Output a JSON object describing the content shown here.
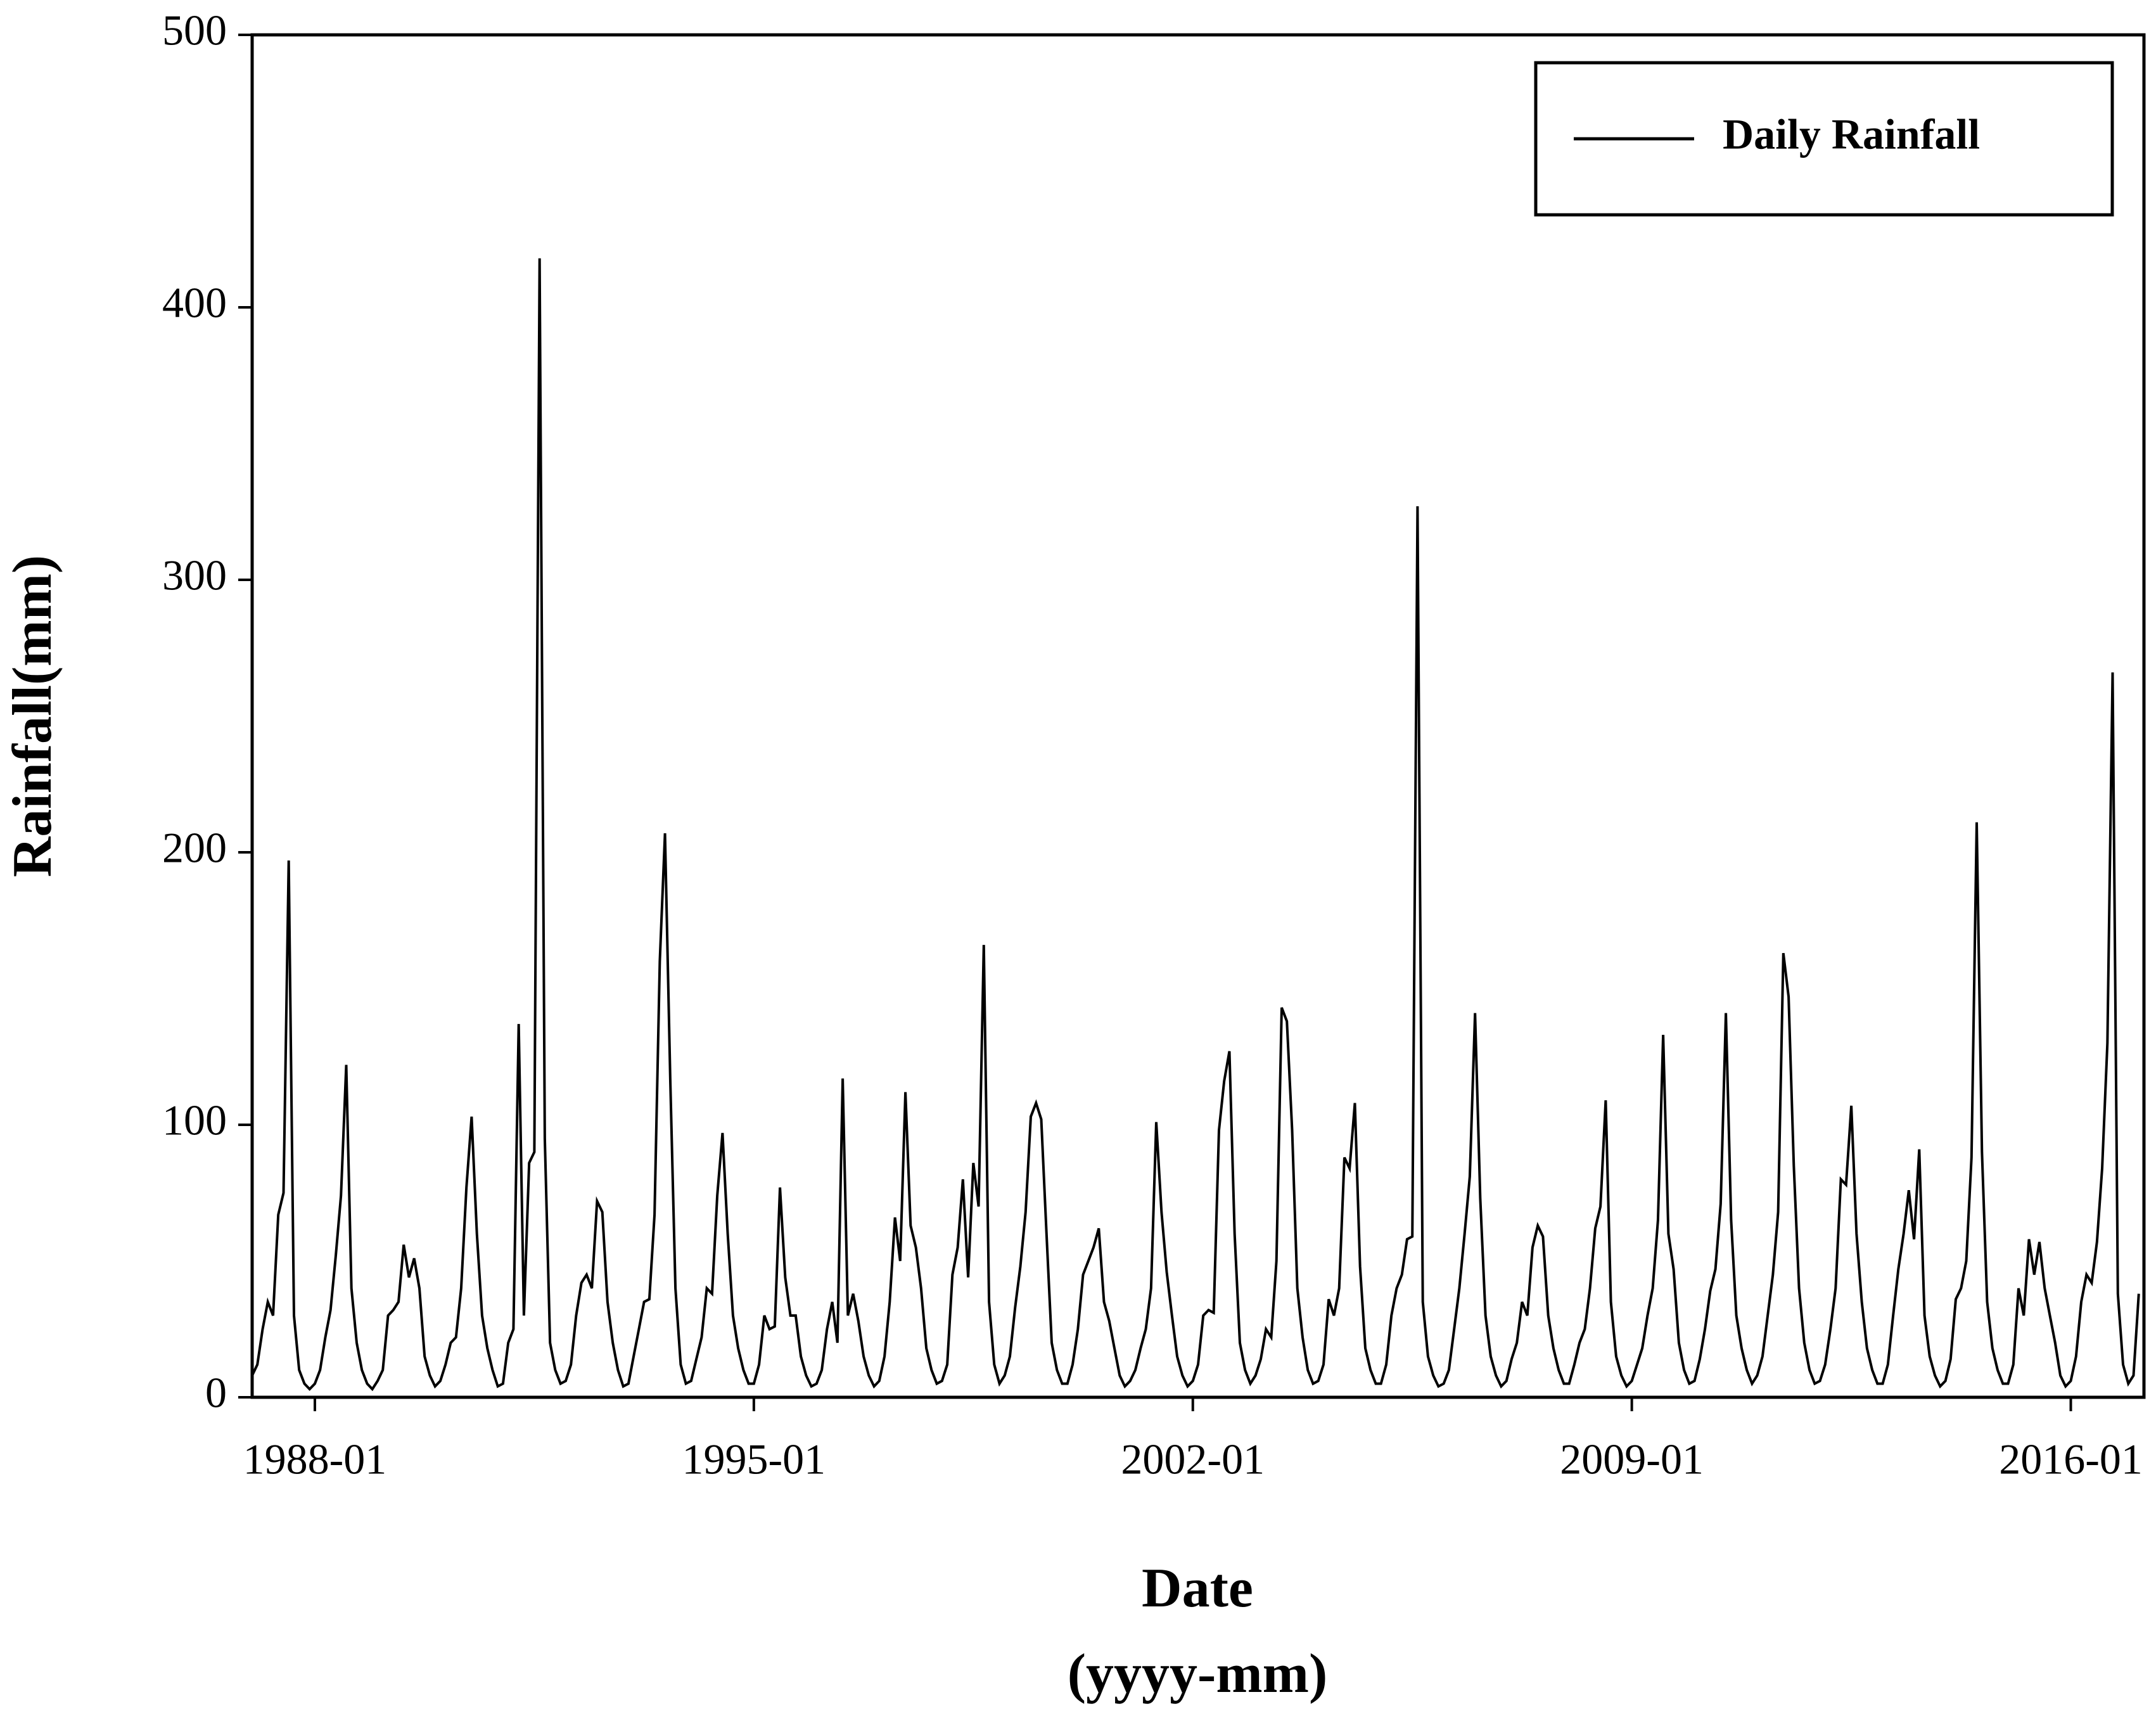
{
  "chart_data": {
    "type": "line",
    "ylabel": "Rainfall(mm)",
    "xlabel": "Date",
    "xlabel_unit": "(yyyy-mm)",
    "ylim": [
      0,
      500
    ],
    "yticks": [
      0,
      100,
      200,
      300,
      400,
      500
    ],
    "xlim": [
      "1987-01",
      "2017-03"
    ],
    "xticks": [
      "1988-01",
      "1995-01",
      "2002-01",
      "2009-01",
      "2016-01"
    ],
    "legend": "top-right",
    "x": [
      "1987-01",
      "1987-02",
      "1987-03",
      "1987-04",
      "1987-05",
      "1987-06",
      "1987-07",
      "1987-08",
      "1987-09",
      "1987-10",
      "1987-11",
      "1987-12",
      "1988-01",
      "1988-02",
      "1988-03",
      "1988-04",
      "1988-05",
      "1988-06",
      "1988-07",
      "1988-08",
      "1988-09",
      "1988-10",
      "1988-11",
      "1988-12",
      "1989-01",
      "1989-02",
      "1989-03",
      "1989-04",
      "1989-05",
      "1989-06",
      "1989-07",
      "1989-08",
      "1989-09",
      "1989-10",
      "1989-11",
      "1989-12",
      "1990-01",
      "1990-02",
      "1990-03",
      "1990-04",
      "1990-05",
      "1990-06",
      "1990-07",
      "1990-08",
      "1990-09",
      "1990-10",
      "1990-11",
      "1990-12",
      "1991-01",
      "1991-02",
      "1991-03",
      "1991-04",
      "1991-05",
      "1991-06",
      "1991-07",
      "1991-08",
      "1991-09",
      "1991-10",
      "1991-11",
      "1991-12",
      "1992-01",
      "1992-02",
      "1992-03",
      "1992-04",
      "1992-05",
      "1992-06",
      "1992-07",
      "1992-08",
      "1992-09",
      "1992-10",
      "1992-11",
      "1992-12",
      "1993-01",
      "1993-02",
      "1993-03",
      "1993-04",
      "1993-05",
      "1993-06",
      "1993-07",
      "1993-08",
      "1993-09",
      "1993-10",
      "1993-11",
      "1993-12",
      "1994-01",
      "1994-02",
      "1994-03",
      "1994-04",
      "1994-05",
      "1994-06",
      "1994-07",
      "1994-08",
      "1994-09",
      "1994-10",
      "1994-11",
      "1994-12",
      "1995-01",
      "1995-02",
      "1995-03",
      "1995-04",
      "1995-05",
      "1995-06",
      "1995-07",
      "1995-08",
      "1995-09",
      "1995-10",
      "1995-11",
      "1995-12",
      "1996-01",
      "1996-02",
      "1996-03",
      "1996-04",
      "1996-05",
      "1996-06",
      "1996-07",
      "1996-08",
      "1996-09",
      "1996-10",
      "1996-11",
      "1996-12",
      "1997-01",
      "1997-02",
      "1997-03",
      "1997-04",
      "1997-05",
      "1997-06",
      "1997-07",
      "1997-08",
      "1997-09",
      "1997-10",
      "1997-11",
      "1997-12",
      "1998-01",
      "1998-02",
      "1998-03",
      "1998-04",
      "1998-05",
      "1998-06",
      "1998-07",
      "1998-08",
      "1998-09",
      "1998-10",
      "1998-11",
      "1998-12",
      "1999-01",
      "1999-02",
      "1999-03",
      "1999-04",
      "1999-05",
      "1999-06",
      "1999-07",
      "1999-08",
      "1999-09",
      "1999-10",
      "1999-11",
      "1999-12",
      "2000-01",
      "2000-02",
      "2000-03",
      "2000-04",
      "2000-05",
      "2000-06",
      "2000-07",
      "2000-08",
      "2000-09",
      "2000-10",
      "2000-11",
      "2000-12",
      "2001-01",
      "2001-02",
      "2001-03",
      "2001-04",
      "2001-05",
      "2001-06",
      "2001-07",
      "2001-08",
      "2001-09",
      "2001-10",
      "2001-11",
      "2001-12",
      "2002-01",
      "2002-02",
      "2002-03",
      "2002-04",
      "2002-05",
      "2002-06",
      "2002-07",
      "2002-08",
      "2002-09",
      "2002-10",
      "2002-11",
      "2002-12",
      "2003-01",
      "2003-02",
      "2003-03",
      "2003-04",
      "2003-05",
      "2003-06",
      "2003-07",
      "2003-08",
      "2003-09",
      "2003-10",
      "2003-11",
      "2003-12",
      "2004-01",
      "2004-02",
      "2004-03",
      "2004-04",
      "2004-05",
      "2004-06",
      "2004-07",
      "2004-08",
      "2004-09",
      "2004-10",
      "2004-11",
      "2004-12",
      "2005-01",
      "2005-02",
      "2005-03",
      "2005-04",
      "2005-05",
      "2005-06",
      "2005-07",
      "2005-08",
      "2005-09",
      "2005-10",
      "2005-11",
      "2005-12",
      "2006-01",
      "2006-02",
      "2006-03",
      "2006-04",
      "2006-05",
      "2006-06",
      "2006-07",
      "2006-08",
      "2006-09",
      "2006-10",
      "2006-11",
      "2006-12",
      "2007-01",
      "2007-02",
      "2007-03",
      "2007-04",
      "2007-05",
      "2007-06",
      "2007-07",
      "2007-08",
      "2007-09",
      "2007-10",
      "2007-11",
      "2007-12",
      "2008-01",
      "2008-02",
      "2008-03",
      "2008-04",
      "2008-05",
      "2008-06",
      "2008-07",
      "2008-08",
      "2008-09",
      "2008-10",
      "2008-11",
      "2008-12",
      "2009-01",
      "2009-02",
      "2009-03",
      "2009-04",
      "2009-05",
      "2009-06",
      "2009-07",
      "2009-08",
      "2009-09",
      "2009-10",
      "2009-11",
      "2009-12",
      "2010-01",
      "2010-02",
      "2010-03",
      "2010-04",
      "2010-05",
      "2010-06",
      "2010-07",
      "2010-08",
      "2010-09",
      "2010-10",
      "2010-11",
      "2010-12",
      "2011-01",
      "2011-02",
      "2011-03",
      "2011-04",
      "2011-05",
      "2011-06",
      "2011-07",
      "2011-08",
      "2011-09",
      "2011-10",
      "2011-11",
      "2011-12",
      "2012-01",
      "2012-02",
      "2012-03",
      "2012-04",
      "2012-05",
      "2012-06",
      "2012-07",
      "2012-08",
      "2012-09",
      "2012-10",
      "2012-11",
      "2012-12",
      "2013-01",
      "2013-02",
      "2013-03",
      "2013-04",
      "2013-05",
      "2013-06",
      "2013-07",
      "2013-08",
      "2013-09",
      "2013-10",
      "2013-11",
      "2013-12",
      "2014-01",
      "2014-02",
      "2014-03",
      "2014-04",
      "2014-05",
      "2014-06",
      "2014-07",
      "2014-08",
      "2014-09",
      "2014-10",
      "2014-11",
      "2014-12",
      "2015-01",
      "2015-02",
      "2015-03",
      "2015-04",
      "2015-05",
      "2015-06",
      "2015-07",
      "2015-08",
      "2015-09",
      "2015-10",
      "2015-11",
      "2015-12",
      "2016-01",
      "2016-02",
      "2016-03",
      "2016-04",
      "2016-05",
      "2016-06",
      "2016-07",
      "2016-08",
      "2016-09",
      "2016-10",
      "2016-11",
      "2016-12",
      "2017-01",
      "2017-02"
    ],
    "series": [
      {
        "name": "Daily Rainfall",
        "color": "#000000",
        "values": [
          8,
          12,
          25,
          35,
          30,
          67,
          75,
          197,
          30,
          10,
          5,
          3,
          5,
          10,
          22,
          32,
          52,
          74,
          122,
          40,
          20,
          10,
          5,
          3,
          6,
          10,
          30,
          32,
          35,
          56,
          44,
          51,
          40,
          15,
          8,
          4,
          6,
          12,
          20,
          22,
          40,
          77,
          103,
          60,
          30,
          18,
          10,
          4,
          5,
          20,
          25,
          137,
          30,
          86,
          90,
          418,
          95,
          20,
          10,
          5,
          6,
          12,
          30,
          42,
          45,
          40,
          72,
          68,
          35,
          20,
          10,
          4,
          5,
          15,
          25,
          35,
          36,
          67,
          160,
          207,
          117,
          40,
          12,
          5,
          6,
          14,
          22,
          40,
          38,
          74,
          97,
          60,
          30,
          18,
          10,
          5,
          5,
          12,
          30,
          25,
          26,
          77,
          44,
          30,
          30,
          15,
          8,
          4,
          5,
          10,
          25,
          35,
          20,
          117,
          30,
          38,
          28,
          15,
          8,
          4,
          6,
          15,
          35,
          66,
          50,
          112,
          63,
          55,
          40,
          18,
          10,
          5,
          6,
          12,
          45,
          55,
          80,
          44,
          86,
          70,
          166,
          35,
          12,
          5,
          8,
          15,
          33,
          48,
          68,
          103,
          108,
          102,
          60,
          20,
          10,
          5,
          5,
          12,
          25,
          45,
          50,
          55,
          62,
          35,
          28,
          18,
          8,
          4,
          6,
          10,
          18,
          25,
          40,
          101,
          68,
          46,
          30,
          15,
          8,
          4,
          6,
          12,
          30,
          32,
          31,
          98,
          116,
          127,
          60,
          20,
          10,
          5,
          8,
          14,
          25,
          22,
          50,
          143,
          138,
          98,
          40,
          22,
          10,
          5,
          6,
          12,
          36,
          30,
          40,
          88,
          84,
          108,
          48,
          18,
          10,
          5,
          5,
          12,
          30,
          40,
          45,
          58,
          59,
          327,
          35,
          15,
          8,
          4,
          5,
          10,
          25,
          40,
          60,
          81,
          141,
          73,
          30,
          15,
          8,
          4,
          6,
          14,
          20,
          35,
          30,
          55,
          63,
          59,
          30,
          18,
          10,
          5,
          5,
          12,
          20,
          25,
          40,
          62,
          70,
          109,
          35,
          15,
          8,
          4,
          6,
          12,
          18,
          30,
          40,
          65,
          133,
          60,
          47,
          20,
          10,
          5,
          6,
          14,
          25,
          39,
          47,
          71,
          141,
          65,
          30,
          18,
          10,
          5,
          8,
          15,
          30,
          45,
          68,
          163,
          147,
          85,
          40,
          20,
          10,
          5,
          6,
          12,
          25,
          40,
          80,
          78,
          107,
          60,
          35,
          18,
          10,
          5,
          5,
          12,
          30,
          47,
          60,
          76,
          58,
          91,
          30,
          15,
          8,
          4,
          6,
          14,
          36,
          40,
          50,
          88,
          211,
          90,
          35,
          18,
          10,
          5,
          5,
          12,
          40,
          30,
          58,
          45,
          57,
          40,
          30,
          20,
          8,
          4,
          6,
          15,
          35,
          45,
          42,
          57,
          84,
          130,
          266,
          38,
          12,
          5,
          8,
          38
        ]
      }
    ]
  }
}
